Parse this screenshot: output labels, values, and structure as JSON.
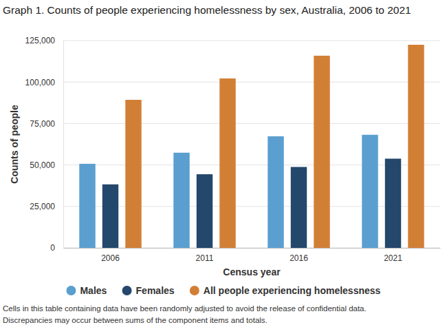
{
  "chart_data": {
    "type": "bar",
    "title": "Graph 1. Counts of people experiencing homelessness by sex, Australia, 2006 to 2021",
    "x_label": "Census year",
    "y_label": "Counts of people",
    "categories": [
      "2006",
      "2011",
      "2016",
      "2021"
    ],
    "series": [
      {
        "name": "Males",
        "color": "#5a9fd0",
        "values": [
          50700,
          57400,
          67300,
          68200
        ]
      },
      {
        "name": "Females",
        "color": "#24476c",
        "values": [
          38300,
          44400,
          48800,
          53800
        ]
      },
      {
        "name": "All people experiencing homelessness",
        "color": "#d27f36",
        "values": [
          89300,
          102200,
          115900,
          122500
        ]
      }
    ],
    "ylim": [
      0,
      125000
    ],
    "yticks": [
      0,
      {
        "value": 25000,
        "label": "25,000"
      },
      {
        "value": 50000,
        "label": "50,000"
      },
      {
        "value": 75000,
        "label": "75,000"
      },
      {
        "value": 100000,
        "label": "100,000"
      },
      {
        "value": 125000,
        "label": "125,000"
      }
    ],
    "grid": true,
    "legend": "bottom",
    "notes": [
      "Cells in this table containing data have been randomly adjusted to avoid the release of confidential data.",
      "Discrepancies may occur between sums of the component items and totals."
    ]
  }
}
